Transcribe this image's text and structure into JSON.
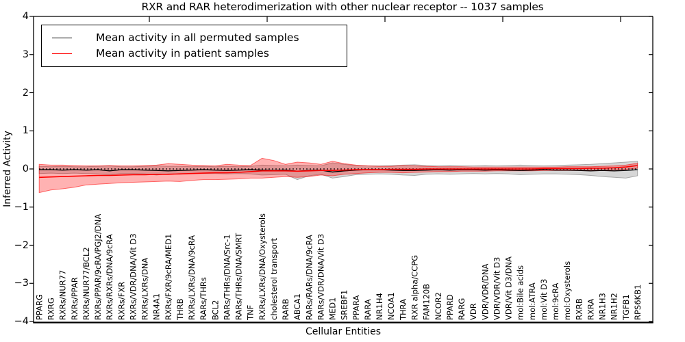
{
  "title": "RXR and RAR heterodimerization with other nuclear receptor -- 1037 samples",
  "axes": {
    "ylabel": "Inferred Activity",
    "xlabel": "Cellular Entities",
    "ytick_labels": [
      "4",
      "3",
      "2",
      "1",
      "0",
      "−1",
      "−2",
      "−3",
      "−4"
    ],
    "ytick_values": [
      4,
      3,
      2,
      1,
      0,
      -1,
      -2,
      -3,
      -4
    ]
  },
  "legend": {
    "entries": [
      {
        "label": "Mean activity in all permuted samples",
        "color": "#000000"
      },
      {
        "label": "Mean activity in patient samples",
        "color": "#ff0000"
      }
    ],
    "position": "upper left"
  },
  "colors": {
    "permuted_line": "#000000",
    "patient_line": "#ff0000",
    "permuted_band_fill": "rgba(0,0,0,0.16)",
    "permuted_band_edge": "rgba(110,110,110,0.55)",
    "patient_band_fill": "rgba(255,0,0,0.30)",
    "patient_band_edge": "rgba(255,0,0,0.55)",
    "axis": "#000000"
  },
  "chart_data": {
    "type": "line",
    "title": "RXR and RAR heterodimerization with other nuclear receptor -- 1037 samples",
    "xlabel": "Cellular Entities",
    "ylabel": "Inferred Activity",
    "ylim": [
      -4,
      4
    ],
    "grid": false,
    "legend_position": "upper left",
    "categories": [
      "PPARG",
      "RXRG",
      "RXRs/NUR77",
      "RXRs/PPAR",
      "RXRs/NUR77/BCL2",
      "RXRs/PPAR/9cRA/PGJ2/DNA",
      "RXRs/RXRs/DNA/9cRA",
      "RXRs/FXR",
      "RXRs/VDR/DNA/Vit D3",
      "RXRs/LXRs/DNA",
      "NR4A1",
      "RXRs/FXR/9cRA/MED1",
      "THRB",
      "RXRs/LXRs/DNA/9cRA",
      "RARs/THRs",
      "BCL2",
      "RARs/THRs/DNA/Src-1",
      "RARs/THRs/DNA/SMRT",
      "TNF",
      "RXRs/LXRs/DNA/Oxysterols",
      "cholesterol transport",
      "RARB",
      "ABCA1",
      "RARs/RARs/DNA/9cRA",
      "RARs/VDR/DNA/Vit D3",
      "MED1",
      "SREBF1",
      "PPARA",
      "RARA",
      "NR1H4",
      "NCOA1",
      "THRA",
      "RXR alpha/CCPG",
      "FAM120B",
      "NCOR2",
      "PPARD",
      "RARG",
      "VDR",
      "VDR/VDR/DNA",
      "VDR/VDR/Vit D3",
      "VDR/Vit D3/DNA",
      "mol:Bile acids",
      "mol:ATRA",
      "mol:Vit D3",
      "mol:9cRA",
      "mol:Oxysterols",
      "RXRB",
      "RXRA",
      "NR1H3",
      "NR1H2",
      "TGFB1",
      "RPS6KB1"
    ],
    "series": [
      {
        "name": "Mean activity in all permuted samples",
        "color": "#000000",
        "style": "solid",
        "values": [
          -0.02,
          -0.02,
          -0.03,
          -0.02,
          -0.03,
          -0.02,
          -0.05,
          -0.02,
          -0.02,
          -0.03,
          -0.04,
          -0.05,
          -0.04,
          -0.03,
          -0.02,
          -0.03,
          -0.04,
          -0.03,
          -0.02,
          -0.03,
          -0.04,
          -0.03,
          -0.06,
          -0.04,
          -0.03,
          -0.08,
          -0.05,
          -0.03,
          -0.02,
          -0.02,
          -0.03,
          -0.04,
          -0.04,
          -0.03,
          -0.02,
          -0.03,
          -0.02,
          -0.02,
          -0.03,
          -0.02,
          -0.03,
          -0.04,
          -0.03,
          -0.02,
          -0.03,
          -0.03,
          -0.04,
          -0.05,
          -0.04,
          -0.05,
          -0.04,
          -0.02
        ]
      },
      {
        "name": "Mean activity in patient samples",
        "color": "#ff0000",
        "style": "solid",
        "values": [
          -0.22,
          -0.21,
          -0.2,
          -0.19,
          -0.18,
          -0.17,
          -0.17,
          -0.16,
          -0.15,
          -0.15,
          -0.14,
          -0.14,
          -0.13,
          -0.12,
          -0.11,
          -0.1,
          -0.1,
          -0.09,
          -0.07,
          -0.05,
          -0.05,
          -0.05,
          -0.06,
          -0.05,
          -0.04,
          -0.04,
          -0.03,
          -0.02,
          -0.02,
          -0.02,
          -0.01,
          -0.01,
          -0.01,
          0,
          0,
          0,
          0,
          0,
          0,
          0,
          0,
          0,
          0,
          0.01,
          0.01,
          0.01,
          0.01,
          0.02,
          0.02,
          0.03,
          0.05,
          0.09
        ]
      }
    ],
    "bands": [
      {
        "name": "permuted samples range",
        "fill": "rgba(0,0,0,0.16)",
        "edge": "rgba(110,110,110,0.55)",
        "upper": [
          0.07,
          0.06,
          0.07,
          0.06,
          0.06,
          0.07,
          0.08,
          0.06,
          0.06,
          0.07,
          0.08,
          0.07,
          0.07,
          0.06,
          0.07,
          0.06,
          0.07,
          0.06,
          0.07,
          0.1,
          0.09,
          0.08,
          0.1,
          0.09,
          0.08,
          0.16,
          0.12,
          0.09,
          0.08,
          0.08,
          0.09,
          0.1,
          0.11,
          0.09,
          0.08,
          0.09,
          0.08,
          0.08,
          0.09,
          0.08,
          0.09,
          0.1,
          0.09,
          0.08,
          0.09,
          0.1,
          0.11,
          0.12,
          0.14,
          0.16,
          0.18,
          0.2
        ],
        "lower": [
          -0.12,
          -0.11,
          -0.12,
          -0.11,
          -0.12,
          -0.13,
          -0.15,
          -0.12,
          -0.12,
          -0.13,
          -0.16,
          -0.13,
          -0.14,
          -0.12,
          -0.12,
          -0.12,
          -0.13,
          -0.12,
          -0.13,
          -0.16,
          -0.15,
          -0.14,
          -0.28,
          -0.18,
          -0.14,
          -0.24,
          -0.2,
          -0.15,
          -0.14,
          -0.13,
          -0.14,
          -0.16,
          -0.17,
          -0.14,
          -0.13,
          -0.14,
          -0.13,
          -0.12,
          -0.13,
          -0.12,
          -0.13,
          -0.15,
          -0.14,
          -0.13,
          -0.13,
          -0.14,
          -0.15,
          -0.17,
          -0.2,
          -0.22,
          -0.24,
          -0.18
        ]
      },
      {
        "name": "patient samples range",
        "fill": "rgba(255,0,0,0.30)",
        "edge": "rgba(255,0,0,0.55)",
        "upper": [
          0.12,
          0.1,
          0.1,
          0.09,
          0.08,
          0.08,
          0.09,
          0.08,
          0.08,
          0.09,
          0.1,
          0.14,
          0.12,
          0.1,
          0.09,
          0.08,
          0.12,
          0.1,
          0.09,
          0.28,
          0.22,
          0.12,
          0.18,
          0.16,
          0.12,
          0.2,
          0.14,
          0.1,
          0.08,
          0.07,
          0.07,
          0.09,
          0.08,
          0.07,
          0.06,
          0.06,
          0.06,
          0.05,
          0.05,
          0.05,
          0.05,
          0.05,
          0.05,
          0.05,
          0.05,
          0.06,
          0.06,
          0.06,
          0.07,
          0.08,
          0.1,
          0.15
        ],
        "lower": [
          -0.62,
          -0.55,
          -0.52,
          -0.48,
          -0.42,
          -0.4,
          -0.38,
          -0.36,
          -0.35,
          -0.34,
          -0.33,
          -0.32,
          -0.33,
          -0.3,
          -0.28,
          -0.28,
          -0.27,
          -0.26,
          -0.24,
          -0.24,
          -0.22,
          -0.2,
          -0.22,
          -0.2,
          -0.16,
          -0.18,
          -0.14,
          -0.12,
          -0.1,
          -0.09,
          -0.09,
          -0.1,
          -0.09,
          -0.08,
          -0.07,
          -0.07,
          -0.06,
          -0.06,
          -0.06,
          -0.05,
          -0.05,
          -0.05,
          -0.05,
          -0.04,
          -0.04,
          -0.04,
          -0.04,
          -0.03,
          -0.03,
          -0.02,
          -0.01,
          0.02
        ]
      }
    ],
    "reference_line": {
      "y": 0,
      "style": "dotted",
      "color": "#000000"
    }
  }
}
